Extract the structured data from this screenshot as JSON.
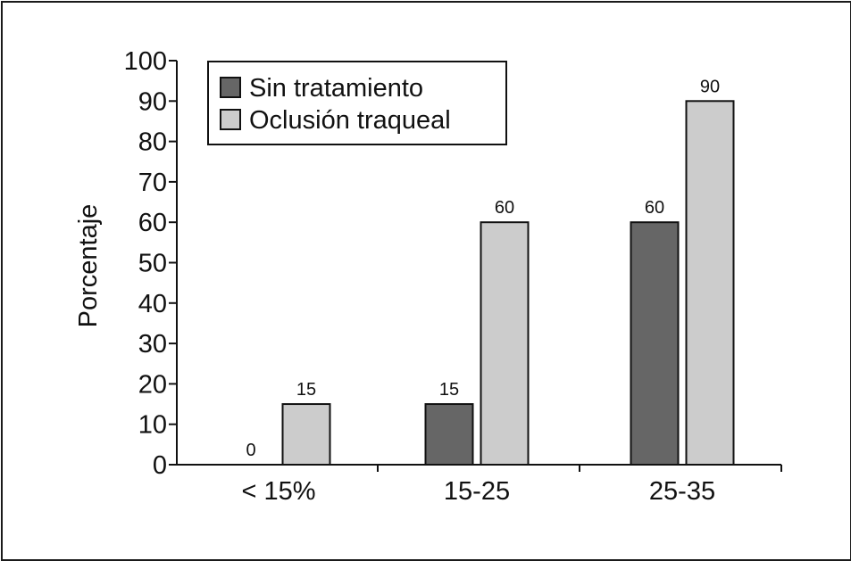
{
  "chart_data": {
    "type": "bar",
    "title": "",
    "xlabel": "",
    "ylabel": "Porcentaje",
    "ylim": [
      0,
      100
    ],
    "yticks": [
      0,
      10,
      20,
      30,
      40,
      50,
      60,
      70,
      80,
      90,
      100
    ],
    "categories": [
      "< 15%",
      "15-25",
      "25-35"
    ],
    "series": [
      {
        "name": "Sin tratamiento",
        "values": [
          0,
          15,
          60
        ],
        "color": "#666666"
      },
      {
        "name": "Oclusión traqueal",
        "values": [
          15,
          60,
          90
        ],
        "color": "#cccccc"
      }
    ],
    "grid": false,
    "legend_position": "top-left"
  }
}
